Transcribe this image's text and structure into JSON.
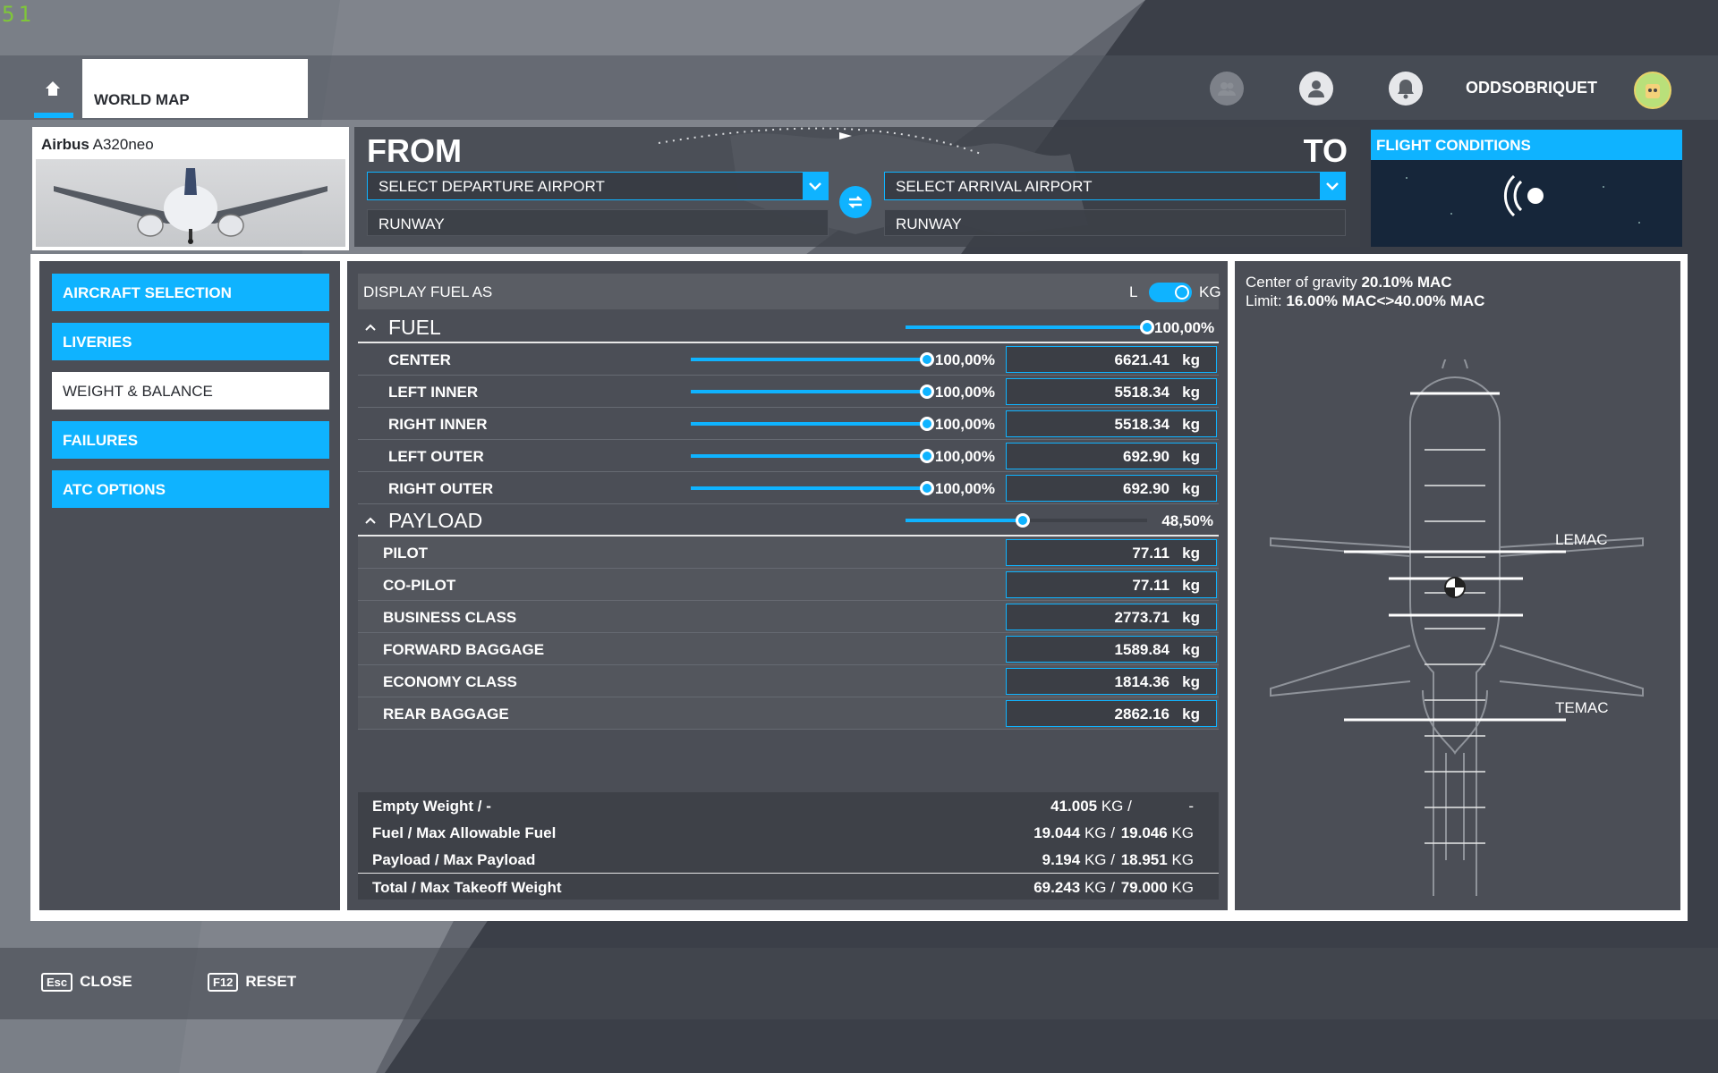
{
  "fps": "51",
  "topbar": {
    "world_map": "WORLD MAP",
    "username": "ODDSOBRIQUET"
  },
  "aircraft": {
    "maker": "Airbus",
    "model": "A320neo"
  },
  "route": {
    "from_label": "FROM",
    "to_label": "TO",
    "departure_placeholder": "SELECT DEPARTURE AIRPORT",
    "arrival_placeholder": "SELECT ARRIVAL AIRPORT",
    "departure_runway": "RUNWAY",
    "arrival_runway": "RUNWAY"
  },
  "flight_conditions": {
    "title": "FLIGHT CONDITIONS"
  },
  "nav": {
    "items": [
      {
        "label": "AIRCRAFT SELECTION",
        "active": false
      },
      {
        "label": "LIVERIES",
        "active": false
      },
      {
        "label": "WEIGHT & BALANCE",
        "active": true
      },
      {
        "label": "FAILURES",
        "active": false
      },
      {
        "label": "ATC OPTIONS",
        "active": false
      }
    ]
  },
  "display_fuel": {
    "label": "DISPLAY FUEL AS",
    "left_unit": "L",
    "right_unit": "KG",
    "selected": "KG"
  },
  "fuel": {
    "title": "FUEL",
    "percent_text": "100,00%",
    "percent": 100,
    "tanks": [
      {
        "name": "CENTER",
        "percent_text": "100,00%",
        "percent": 100,
        "value": "6621.41",
        "unit": "kg"
      },
      {
        "name": "LEFT INNER",
        "percent_text": "100,00%",
        "percent": 100,
        "value": "5518.34",
        "unit": "kg"
      },
      {
        "name": "RIGHT INNER",
        "percent_text": "100,00%",
        "percent": 100,
        "value": "5518.34",
        "unit": "kg"
      },
      {
        "name": "LEFT OUTER",
        "percent_text": "100,00%",
        "percent": 100,
        "value": "692.90",
        "unit": "kg"
      },
      {
        "name": "RIGHT OUTER",
        "percent_text": "100,00%",
        "percent": 100,
        "value": "692.90",
        "unit": "kg"
      }
    ]
  },
  "payload": {
    "title": "PAYLOAD",
    "percent_text": "48,50%",
    "percent": 48.5,
    "stations": [
      {
        "name": "PILOT",
        "value": "77.11",
        "unit": "kg"
      },
      {
        "name": "CO-PILOT",
        "value": "77.11",
        "unit": "kg"
      },
      {
        "name": "BUSINESS CLASS",
        "value": "2773.71",
        "unit": "kg"
      },
      {
        "name": "FORWARD BAGGAGE",
        "value": "1589.84",
        "unit": "kg"
      },
      {
        "name": "ECONOMY CLASS",
        "value": "1814.36",
        "unit": "kg"
      },
      {
        "name": "REAR BAGGAGE",
        "value": "2862.16",
        "unit": "kg"
      }
    ]
  },
  "summary": [
    {
      "label": "Empty Weight / -",
      "value": "41.005",
      "unit": "KG /",
      "max": "",
      "max_unit": "-"
    },
    {
      "label": "Fuel / Max Allowable Fuel",
      "value": "19.044",
      "unit": "KG /",
      "max": "19.046",
      "max_unit": "KG"
    },
    {
      "label": "Payload / Max Payload",
      "value": "9.194",
      "unit": "KG /",
      "max": "18.951",
      "max_unit": "KG"
    },
    {
      "label": "Total / Max Takeoff Weight",
      "value": "69.243",
      "unit": "KG /",
      "max": "79.000",
      "max_unit": "KG"
    }
  ],
  "cg": {
    "label": "Center of gravity",
    "value": "20.10% MAC",
    "limit_label": "Limit:",
    "limit_value": "16.00% MAC<>40.00% MAC",
    "lemac": "LEMAC",
    "temac": "TEMAC"
  },
  "footer": {
    "close_key": "Esc",
    "close_label": "CLOSE",
    "reset_key": "F12",
    "reset_label": "RESET"
  }
}
